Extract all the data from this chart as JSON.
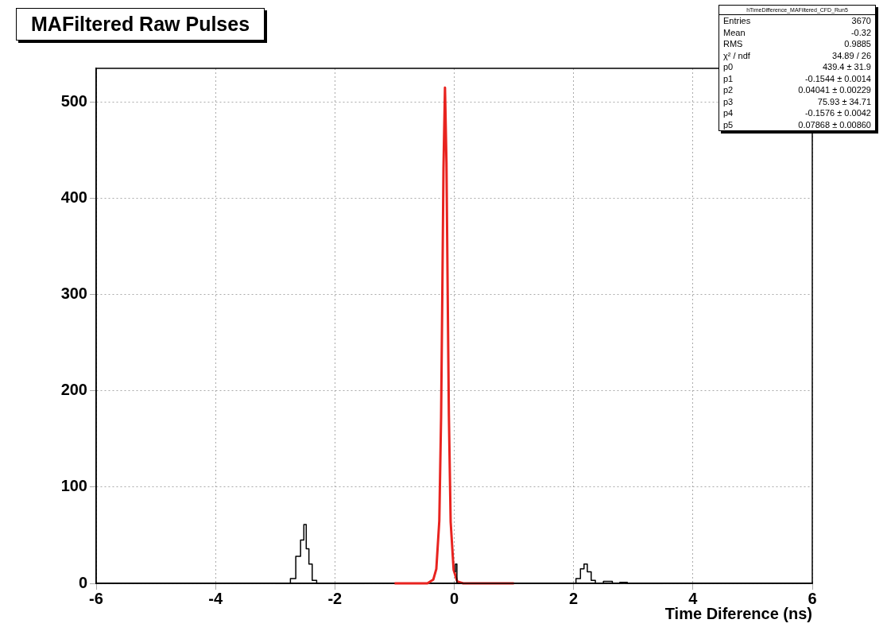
{
  "chart_data": {
    "type": "line",
    "title": "MAFiltered Raw Pulses",
    "xlabel": "Time Diference (ns)",
    "series": [
      {
        "type": "step",
        "color": "#000000",
        "x": [
          -3,
          -2.79,
          -2.7,
          -2.61,
          -2.54,
          -2.5,
          -2.46,
          -2.41,
          -2.35,
          -2.26,
          -1.5,
          -0.02,
          0.01,
          0.03,
          0.06,
          1.5,
          2.0,
          2.08,
          2.15,
          2.2,
          2.26,
          2.33,
          2.4,
          2.6,
          2.7,
          2.85,
          2.95,
          3.5
        ],
        "values": [
          0,
          0,
          5,
          28,
          45,
          61,
          36,
          20,
          3,
          0,
          0,
          null,
          12,
          20,
          0,
          0,
          0,
          5,
          15,
          20,
          12,
          3,
          0,
          2,
          0,
          1,
          0,
          0
        ]
      },
      {
        "type": "line",
        "color": "#e8231f",
        "x": [
          -1,
          -0.45,
          -0.35,
          -0.3,
          -0.25,
          -0.22,
          -0.2,
          -0.18,
          -0.155,
          -0.13,
          -0.11,
          -0.09,
          -0.06,
          -0.01,
          0.05,
          0.15,
          1
        ],
        "values": [
          0,
          0,
          4,
          15,
          65,
          173,
          298,
          432,
          515,
          437,
          303,
          176,
          64,
          14,
          2,
          0,
          0
        ]
      }
    ],
    "xlim": [
      -6,
      6
    ],
    "xticks": [
      -6,
      -4,
      -2,
      0,
      2,
      4,
      6
    ],
    "ylim": [
      0,
      535
    ],
    "yticks": [
      0,
      100,
      200,
      300,
      400,
      500
    ],
    "grid": true,
    "legend": false,
    "annotations": [
      "hTimeDifference_MAFiltered_CFD_Run5",
      "Entries\t3670",
      "Mean\t-0.32",
      "RMS\t0.9885",
      "χ² / ndf\t34.89 / 26",
      "p0\t439.4 ± 31.9",
      "p1\t-0.1544 ± 0.0014",
      "p2\t0.04041 ± 0.00229",
      "p3\t75.93 ± 34.71",
      "p4\t-0.1576 ± 0.0042",
      "p5\t0.07868 ± 0.00860"
    ]
  }
}
